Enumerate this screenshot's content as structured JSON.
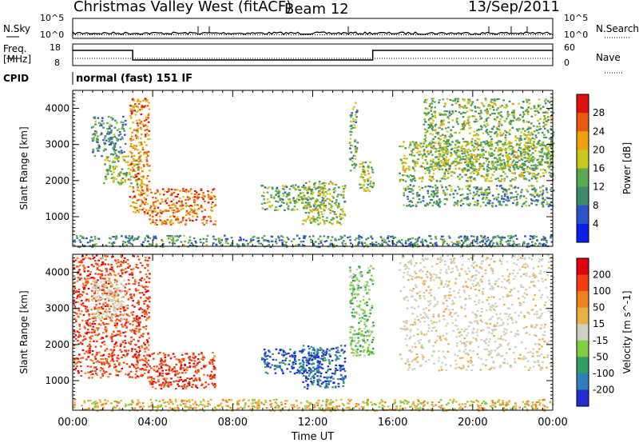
{
  "header": {
    "station": "Christmas Valley West (fitACF)",
    "beam": "Beam 12",
    "date": "13/Sep/2011"
  },
  "panel_labels": {
    "nsky": "N.Sky",
    "nsearch": "N.Search",
    "freq": "Freq.",
    "freq_unit": "[MHz]",
    "nave": "Nave",
    "cpid": "CPID",
    "cpid_value": "normal (fast) 151 IF",
    "noise_tick_top": "10^5",
    "noise_tick_bottom": "10^0",
    "freq_tick_top": "18",
    "freq_tick_bottom": "8",
    "nave_tick_top": "60",
    "nave_tick_bottom": "0"
  },
  "chart_data": [
    {
      "type": "heatmap",
      "name": "power",
      "xlabel": "",
      "ylabel": "Slant Range [km]",
      "xlim": [
        0,
        24
      ],
      "ylim": [
        180,
        4500
      ],
      "xticks": [
        "00:00",
        "04:00",
        "08:00",
        "12:00",
        "16:00",
        "20:00",
        "00:00"
      ],
      "yticks": [
        1000,
        2000,
        3000,
        4000
      ],
      "colorbar": {
        "label": "Power [dB]",
        "ticks": [
          "4",
          "8",
          "12",
          "16",
          "20",
          "24",
          "28"
        ],
        "colors": [
          "#0a1fe6",
          "#2a52c9",
          "#3f8a6a",
          "#5aaa52",
          "#c8c81e",
          "#f0a010",
          "#e85a10",
          "#e01010"
        ]
      },
      "regions": [
        {
          "t0": 0.0,
          "t1": 24.0,
          "r0": 180,
          "r1": 500,
          "level": 0.3
        },
        {
          "t0": 0.9,
          "t1": 2.6,
          "r0": 2700,
          "r1": 3800,
          "level": 0.3
        },
        {
          "t0": 1.5,
          "t1": 3.3,
          "r0": 1900,
          "r1": 2700,
          "level": 0.5
        },
        {
          "t0": 2.8,
          "t1": 3.8,
          "r0": 1100,
          "r1": 4300,
          "level": 0.75
        },
        {
          "t0": 3.8,
          "t1": 7.1,
          "r0": 800,
          "r1": 1800,
          "level": 0.8
        },
        {
          "t0": 9.4,
          "t1": 12.5,
          "r0": 1200,
          "r1": 1900,
          "level": 0.4
        },
        {
          "t0": 11.4,
          "t1": 13.6,
          "r0": 800,
          "r1": 2000,
          "level": 0.5
        },
        {
          "t0": 13.8,
          "t1": 14.2,
          "r0": 2300,
          "r1": 4200,
          "level": 0.4
        },
        {
          "t0": 14.3,
          "t1": 15.0,
          "r0": 1700,
          "r1": 2600,
          "level": 0.5
        },
        {
          "t0": 16.3,
          "t1": 24.0,
          "r0": 2000,
          "r1": 3100,
          "level": 0.5
        },
        {
          "t0": 16.5,
          "t1": 24.0,
          "r0": 1300,
          "r1": 1900,
          "level": 0.35
        },
        {
          "t0": 17.5,
          "t1": 24.0,
          "r0": 2300,
          "r1": 4300,
          "level": 0.45
        }
      ]
    },
    {
      "type": "heatmap",
      "name": "velocity",
      "xlabel": "Time UT",
      "ylabel": "Slant Range [km]",
      "xlim": [
        0,
        24
      ],
      "ylim": [
        180,
        4500
      ],
      "xticks": [
        "00:00",
        "04:00",
        "08:00",
        "12:00",
        "16:00",
        "20:00",
        "00:00"
      ],
      "yticks": [
        1000,
        2000,
        3000,
        4000
      ],
      "colorbar": {
        "label": "Velocity [m s^-1]",
        "ticks": [
          "200",
          "100",
          "50",
          "15",
          "-15",
          "-50",
          "-100",
          "-200"
        ],
        "colors": [
          "#1f2fcf",
          "#2f7fbf",
          "#2f9f5f",
          "#7fcf3f",
          "#cfcfbf",
          "#e8b040",
          "#f08020",
          "#f04010",
          "#e00010"
        ]
      },
      "regions": [
        {
          "t0": 0.0,
          "t1": 24.0,
          "r0": 180,
          "r1": 500,
          "class": "orange-green"
        },
        {
          "t0": 0.0,
          "t1": 3.8,
          "r0": 1100,
          "r1": 4500,
          "class": "red"
        },
        {
          "t0": 0.9,
          "t1": 2.6,
          "r0": 2700,
          "r1": 3800,
          "class": "grey"
        },
        {
          "t0": 3.8,
          "t1": 7.1,
          "r0": 800,
          "r1": 1800,
          "class": "red"
        },
        {
          "t0": 9.4,
          "t1": 12.5,
          "r0": 1200,
          "r1": 1900,
          "class": "blue"
        },
        {
          "t0": 11.4,
          "t1": 13.6,
          "r0": 800,
          "r1": 2000,
          "class": "blue"
        },
        {
          "t0": 13.8,
          "t1": 15.0,
          "r0": 1700,
          "r1": 4200,
          "class": "green"
        },
        {
          "t0": 16.3,
          "t1": 24.0,
          "r0": 1300,
          "r1": 4500,
          "class": "grey"
        }
      ]
    }
  ]
}
